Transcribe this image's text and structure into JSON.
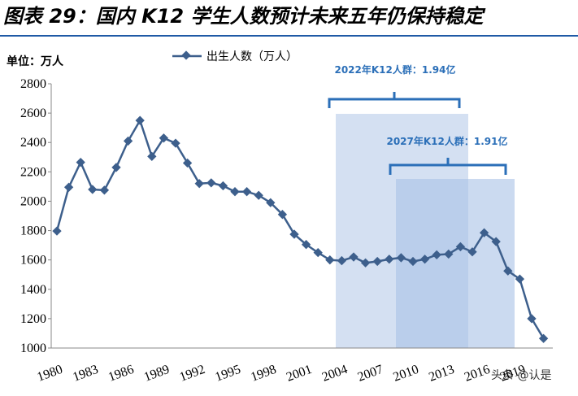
{
  "chart_data": {
    "type": "line",
    "title": "图表 29：国内 K12 学生人数预计未来五年仍保持稳定",
    "unit_label": "单位：万人",
    "categories": [
      "1980",
      null,
      null,
      "1983",
      null,
      null,
      "1986",
      null,
      null,
      "1989",
      null,
      null,
      "1992",
      null,
      null,
      "1995",
      null,
      null,
      "1998",
      null,
      null,
      "2001",
      null,
      null,
      "2004",
      null,
      null,
      "2007",
      null,
      null,
      "2010",
      null,
      null,
      "2013",
      null,
      null,
      "2016",
      null,
      null,
      "2019",
      null,
      null
    ],
    "series": [
      {
        "name": "出生人数（万人）",
        "color": "#3d5f8c",
        "values": [
          1797,
          2095,
          2265,
          2080,
          2075,
          2230,
          2410,
          2550,
          2305,
          2430,
          2395,
          2260,
          2120,
          2125,
          2105,
          2065,
          2065,
          2040,
          1990,
          1910,
          1775,
          1705,
          1650,
          1600,
          1595,
          1620,
          1580,
          1590,
          1605,
          1615,
          1590,
          1605,
          1635,
          1640,
          1690,
          1655,
          1785,
          1725,
          1525,
          1470,
          1200,
          1065
        ]
      }
    ],
    "ylim": [
      1000,
      2800
    ],
    "yticks": [
      1000,
      1200,
      1400,
      1600,
      1800,
      2000,
      2200,
      2400,
      2600,
      2800
    ],
    "annotations": [
      "2022年K12人群：1.94亿",
      "2027年K12人群：1.91亿"
    ],
    "watermark": "头条 @认是"
  }
}
